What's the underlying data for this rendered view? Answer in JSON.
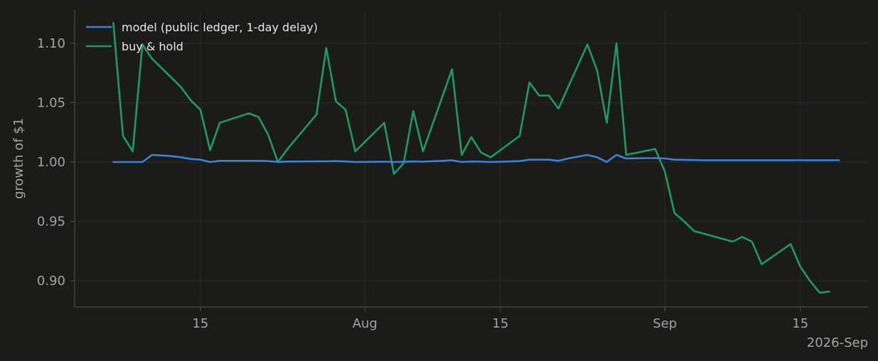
{
  "chart_data": {
    "type": "line",
    "ylabel": "growth of $1",
    "xlabel": "",
    "x_offset_label": "2026-Sep",
    "ylim": [
      0.878,
      1.128
    ],
    "xlim": [
      "2026-07-02",
      "2026-09-22"
    ],
    "grid": true,
    "legend_position": "top-left",
    "y_ticks": [
      {
        "value": 0.9,
        "label": "0.90"
      },
      {
        "value": 0.95,
        "label": "0.95"
      },
      {
        "value": 1.0,
        "label": "1.00"
      },
      {
        "value": 1.05,
        "label": "1.05"
      },
      {
        "value": 1.1,
        "label": "1.10"
      }
    ],
    "x_ticks": [
      {
        "value": "2026-07-15",
        "label": "15"
      },
      {
        "value": "2026-08-01",
        "label": "Aug"
      },
      {
        "value": "2026-08-15",
        "label": "15"
      },
      {
        "value": "2026-09-01",
        "label": "Sep"
      },
      {
        "value": "2026-09-15",
        "label": "15"
      }
    ],
    "series": [
      {
        "name": "model (public ledger, 1-day delay)",
        "color": "#3b82d9",
        "points": [
          [
            "2026-07-06",
            1.0
          ],
          [
            "2026-07-07",
            1.0
          ],
          [
            "2026-07-08",
            1.0
          ],
          [
            "2026-07-09",
            1.0
          ],
          [
            "2026-07-10",
            1.006
          ],
          [
            "2026-07-11",
            1.0055
          ],
          [
            "2026-07-12",
            1.005
          ],
          [
            "2026-07-13",
            1.004
          ],
          [
            "2026-07-14",
            1.0025
          ],
          [
            "2026-07-15",
            1.002
          ],
          [
            "2026-07-16",
            1.0
          ],
          [
            "2026-07-17",
            1.001
          ],
          [
            "2026-07-19",
            1.001
          ],
          [
            "2026-07-21",
            1.001
          ],
          [
            "2026-07-22",
            1.0008
          ],
          [
            "2026-07-23",
            1.0
          ],
          [
            "2026-07-24",
            1.0004
          ],
          [
            "2026-07-26",
            1.0005
          ],
          [
            "2026-07-28",
            1.0006
          ],
          [
            "2026-07-29",
            1.0008
          ],
          [
            "2026-07-30",
            1.0005
          ],
          [
            "2026-07-31",
            1.0
          ],
          [
            "2026-08-03",
            1.0003
          ],
          [
            "2026-08-04",
            1.0
          ],
          [
            "2026-08-05",
            1.0002
          ],
          [
            "2026-08-06",
            1.0005
          ],
          [
            "2026-08-07",
            1.0003
          ],
          [
            "2026-08-09",
            1.001
          ],
          [
            "2026-08-10",
            1.0015
          ],
          [
            "2026-08-11",
            1.0
          ],
          [
            "2026-08-12",
            1.0005
          ],
          [
            "2026-08-13",
            1.0003
          ],
          [
            "2026-08-14",
            1.0
          ],
          [
            "2026-08-16",
            1.0005
          ],
          [
            "2026-08-17",
            1.0008
          ],
          [
            "2026-08-18",
            1.002
          ],
          [
            "2026-08-19",
            1.002
          ],
          [
            "2026-08-20",
            1.002
          ],
          [
            "2026-08-21",
            1.001
          ],
          [
            "2026-08-22",
            1.003
          ],
          [
            "2026-08-24",
            1.006
          ],
          [
            "2026-08-25",
            1.004
          ],
          [
            "2026-08-26",
            1.0
          ],
          [
            "2026-08-27",
            1.006
          ],
          [
            "2026-08-28",
            1.003
          ],
          [
            "2026-08-30",
            1.0033
          ],
          [
            "2026-08-31",
            1.0033
          ],
          [
            "2026-09-01",
            1.003
          ],
          [
            "2026-09-02",
            1.002
          ],
          [
            "2026-09-05",
            1.0015
          ],
          [
            "2026-09-10",
            1.0015
          ],
          [
            "2026-09-15",
            1.0015
          ],
          [
            "2026-09-19",
            1.0015
          ]
        ]
      },
      {
        "name": "buy & hold",
        "color": "#1d9a6c",
        "points": [
          [
            "2026-07-06",
            1.117
          ],
          [
            "2026-07-07",
            1.022
          ],
          [
            "2026-07-08",
            1.009
          ],
          [
            "2026-07-09",
            1.099
          ],
          [
            "2026-07-10",
            1.087
          ],
          [
            "2026-07-13",
            1.063
          ],
          [
            "2026-07-14",
            1.052
          ],
          [
            "2026-07-15",
            1.044
          ],
          [
            "2026-07-16",
            1.01
          ],
          [
            "2026-07-17",
            1.033
          ],
          [
            "2026-07-20",
            1.041
          ],
          [
            "2026-07-21",
            1.038
          ],
          [
            "2026-07-22",
            1.023
          ],
          [
            "2026-07-23",
            1.0
          ],
          [
            "2026-07-24",
            1.011
          ],
          [
            "2026-07-27",
            1.04
          ],
          [
            "2026-07-28",
            1.096
          ],
          [
            "2026-07-29",
            1.051
          ],
          [
            "2026-07-30",
            1.044
          ],
          [
            "2026-07-31",
            1.009
          ],
          [
            "2026-08-03",
            1.033
          ],
          [
            "2026-08-04",
            0.99
          ],
          [
            "2026-08-05",
            0.999
          ],
          [
            "2026-08-06",
            1.043
          ],
          [
            "2026-08-07",
            1.009
          ],
          [
            "2026-08-10",
            1.078
          ],
          [
            "2026-08-11",
            1.006
          ],
          [
            "2026-08-12",
            1.021
          ],
          [
            "2026-08-13",
            1.008
          ],
          [
            "2026-08-14",
            1.004
          ],
          [
            "2026-08-17",
            1.022
          ],
          [
            "2026-08-18",
            1.067
          ],
          [
            "2026-08-19",
            1.056
          ],
          [
            "2026-08-20",
            1.056
          ],
          [
            "2026-08-21",
            1.045
          ],
          [
            "2026-08-24",
            1.099
          ],
          [
            "2026-08-25",
            1.077
          ],
          [
            "2026-08-26",
            1.033
          ],
          [
            "2026-08-27",
            1.1
          ],
          [
            "2026-08-28",
            1.006
          ],
          [
            "2026-08-31",
            1.011
          ],
          [
            "2026-09-01",
            0.992
          ],
          [
            "2026-09-02",
            0.957
          ],
          [
            "2026-09-03",
            0.95
          ],
          [
            "2026-09-04",
            0.942
          ],
          [
            "2026-09-08",
            0.933
          ],
          [
            "2026-09-09",
            0.937
          ],
          [
            "2026-09-10",
            0.933
          ],
          [
            "2026-09-11",
            0.914
          ],
          [
            "2026-09-14",
            0.931
          ],
          [
            "2026-09-15",
            0.912
          ],
          [
            "2026-09-16",
            0.9
          ],
          [
            "2026-09-17",
            0.89
          ],
          [
            "2026-09-18",
            0.891
          ]
        ]
      }
    ]
  }
}
